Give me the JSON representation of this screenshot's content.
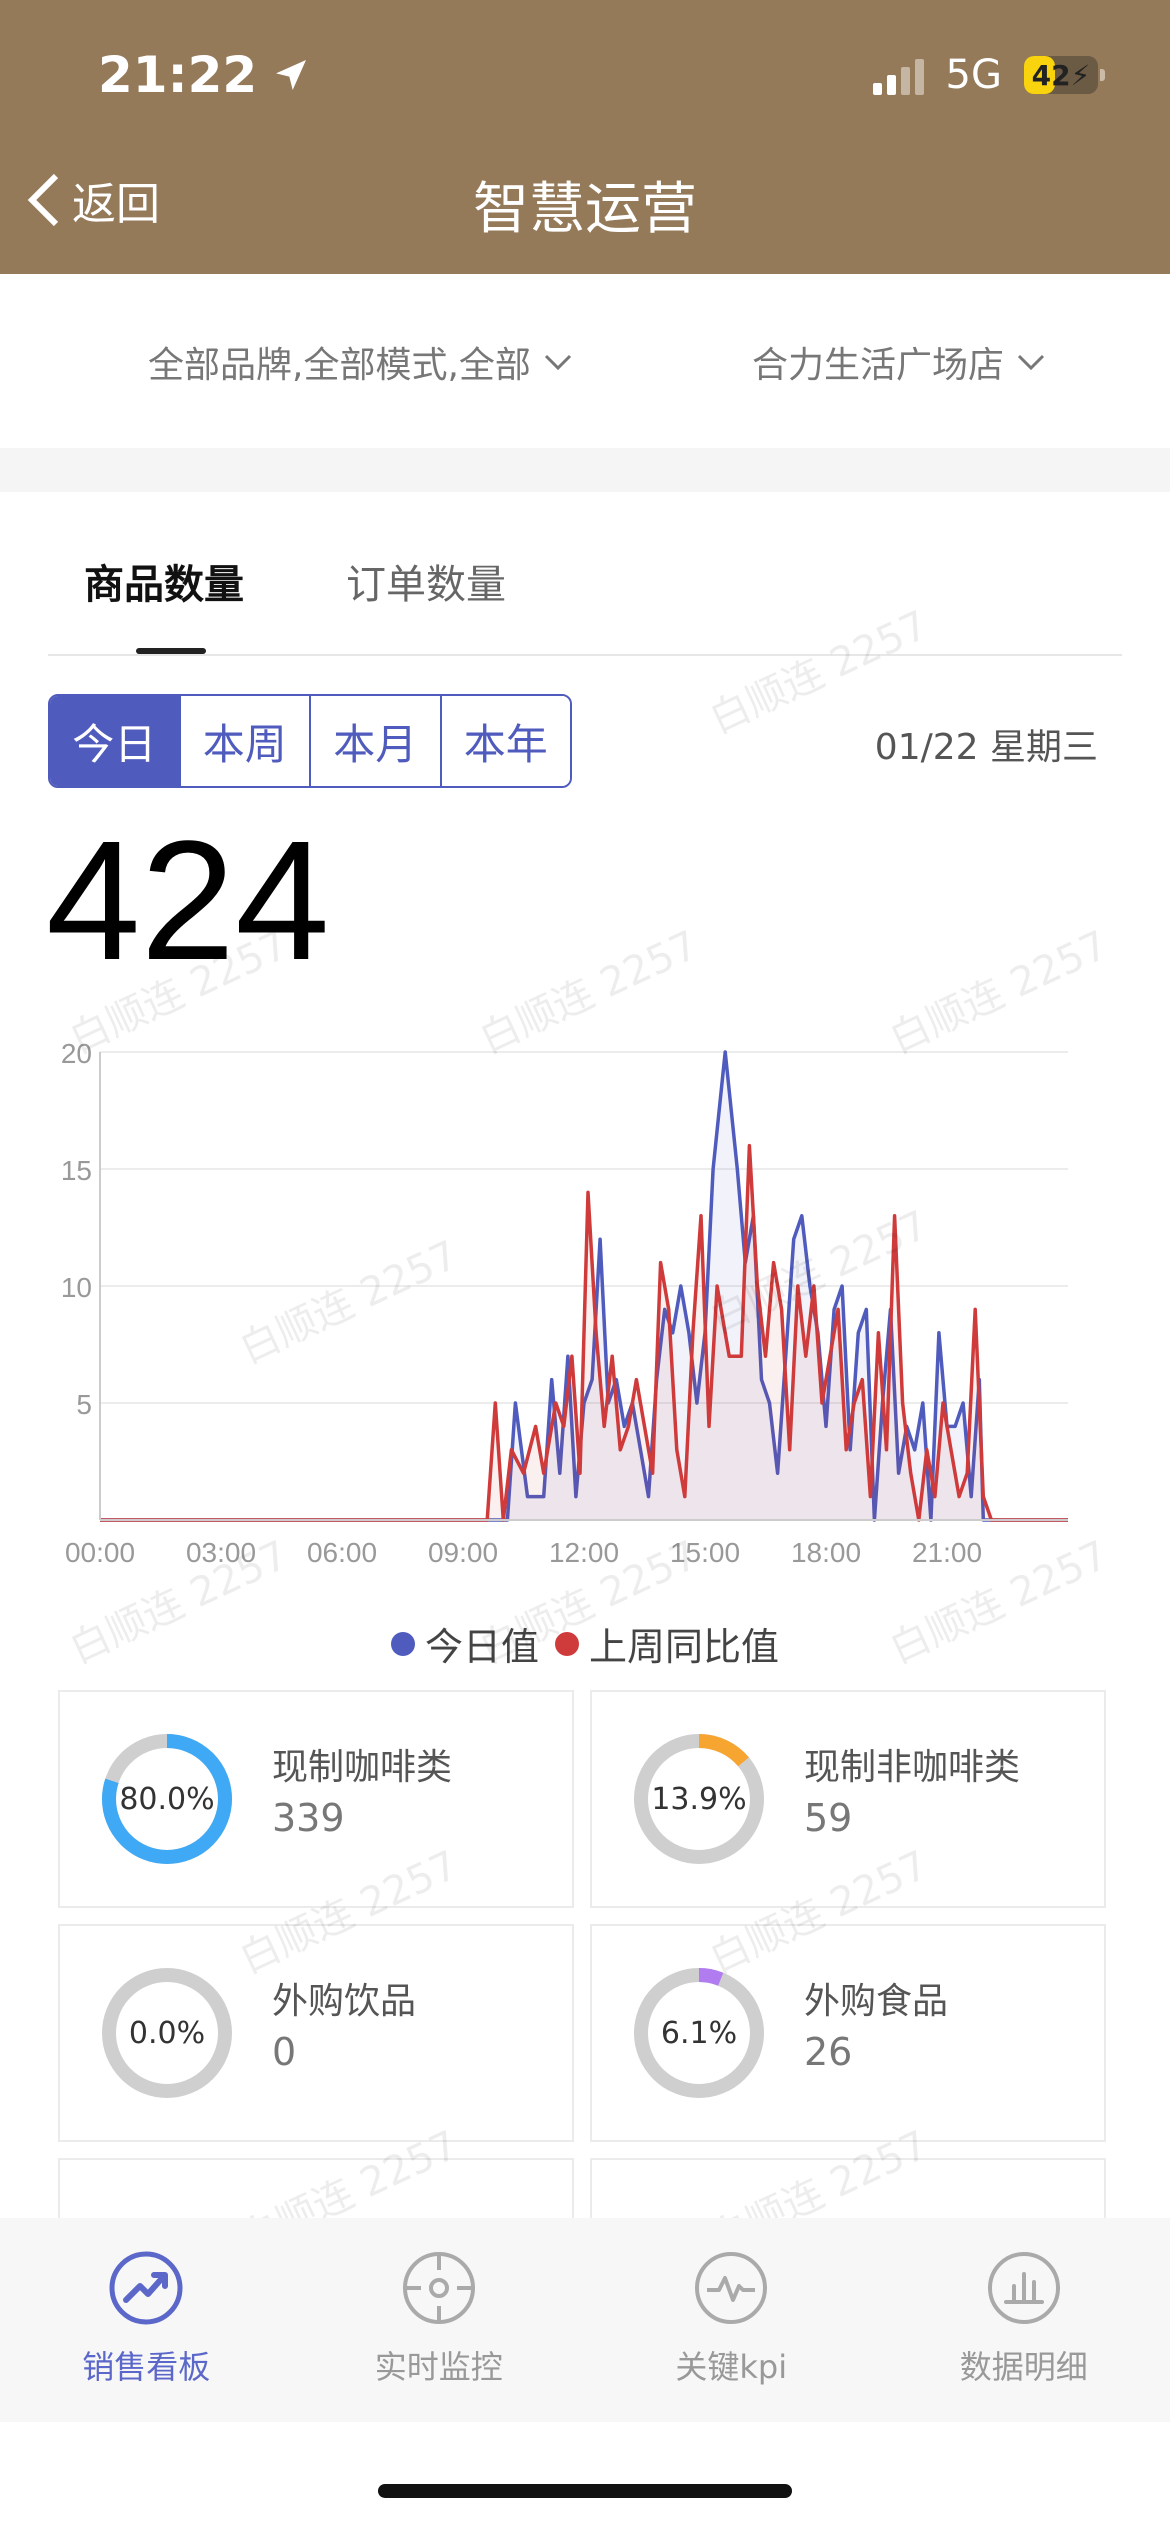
{
  "status_bar": {
    "time": "21:22",
    "network": "5G",
    "battery": "42",
    "battery_level": 0.42
  },
  "header": {
    "back_label": "返回",
    "title": "智慧运营"
  },
  "filters": {
    "brand_filter": "全部品牌,全部模式,全部",
    "store_filter": "合力生活广场店"
  },
  "tabs": [
    {
      "label": "商品数量",
      "active": true
    },
    {
      "label": "订单数量",
      "active": false
    }
  ],
  "period_buttons": [
    {
      "label": "今日",
      "active": true
    },
    {
      "label": "本周",
      "active": false
    },
    {
      "label": "本月",
      "active": false
    },
    {
      "label": "本年",
      "active": false
    }
  ],
  "date_label": "01/22 星期三",
  "total_count": "424",
  "chart_data": {
    "type": "line",
    "x_ticks": [
      "00:00",
      "03:00",
      "06:00",
      "09:00",
      "12:00",
      "15:00",
      "18:00",
      "21:00"
    ],
    "y_ticks": [
      5,
      10,
      15,
      20
    ],
    "ylim": [
      0,
      20
    ],
    "xlim_hours": [
      0,
      24
    ],
    "grid": true,
    "legend_position": "bottom-center",
    "series": [
      {
        "name": "今日值",
        "color": "#4f5bbd",
        "points": [
          [
            0,
            0
          ],
          [
            9.5,
            0
          ],
          [
            10.1,
            0
          ],
          [
            10.3,
            5
          ],
          [
            10.6,
            1
          ],
          [
            11.0,
            1
          ],
          [
            11.2,
            6
          ],
          [
            11.4,
            2
          ],
          [
            11.6,
            7
          ],
          [
            11.8,
            1
          ],
          [
            12.0,
            5
          ],
          [
            12.2,
            6
          ],
          [
            12.4,
            12
          ],
          [
            12.6,
            5
          ],
          [
            12.8,
            6
          ],
          [
            13.0,
            4
          ],
          [
            13.2,
            5
          ],
          [
            13.4,
            3
          ],
          [
            13.6,
            1
          ],
          [
            13.8,
            6
          ],
          [
            14.0,
            9
          ],
          [
            14.2,
            8
          ],
          [
            14.4,
            10
          ],
          [
            14.6,
            8
          ],
          [
            14.8,
            5
          ],
          [
            15.0,
            8
          ],
          [
            15.2,
            15
          ],
          [
            15.5,
            20
          ],
          [
            15.8,
            15
          ],
          [
            16.0,
            11
          ],
          [
            16.2,
            13
          ],
          [
            16.4,
            6
          ],
          [
            16.6,
            5
          ],
          [
            16.8,
            2
          ],
          [
            17.0,
            7
          ],
          [
            17.2,
            12
          ],
          [
            17.4,
            13
          ],
          [
            17.6,
            10
          ],
          [
            17.8,
            8
          ],
          [
            18.0,
            4
          ],
          [
            18.2,
            9
          ],
          [
            18.4,
            10
          ],
          [
            18.6,
            3
          ],
          [
            18.8,
            8
          ],
          [
            19.0,
            9
          ],
          [
            19.2,
            0
          ],
          [
            19.4,
            5
          ],
          [
            19.6,
            9
          ],
          [
            19.8,
            2
          ],
          [
            20.0,
            4
          ],
          [
            20.2,
            3
          ],
          [
            20.4,
            5
          ],
          [
            20.6,
            0
          ],
          [
            20.8,
            8
          ],
          [
            21.0,
            4
          ],
          [
            21.2,
            4
          ],
          [
            21.4,
            5
          ],
          [
            21.6,
            1
          ],
          [
            21.8,
            6
          ],
          [
            21.9,
            0
          ],
          [
            24,
            0
          ]
        ]
      },
      {
        "name": "上周同比值",
        "color": "#cf3b3b",
        "points": [
          [
            0,
            0
          ],
          [
            9.6,
            0
          ],
          [
            9.8,
            5
          ],
          [
            10.0,
            0
          ],
          [
            10.2,
            3
          ],
          [
            10.5,
            2
          ],
          [
            10.8,
            4
          ],
          [
            11.0,
            2
          ],
          [
            11.3,
            5
          ],
          [
            11.5,
            4
          ],
          [
            11.7,
            7
          ],
          [
            11.9,
            2
          ],
          [
            12.1,
            14
          ],
          [
            12.3,
            8
          ],
          [
            12.5,
            4
          ],
          [
            12.7,
            7
          ],
          [
            12.9,
            3
          ],
          [
            13.1,
            4
          ],
          [
            13.3,
            6
          ],
          [
            13.5,
            4
          ],
          [
            13.7,
            2
          ],
          [
            13.9,
            11
          ],
          [
            14.1,
            9
          ],
          [
            14.3,
            3
          ],
          [
            14.5,
            1
          ],
          [
            14.7,
            8
          ],
          [
            14.9,
            13
          ],
          [
            15.1,
            4
          ],
          [
            15.3,
            10
          ],
          [
            15.6,
            7
          ],
          [
            15.9,
            7
          ],
          [
            16.1,
            16
          ],
          [
            16.3,
            10
          ],
          [
            16.5,
            7
          ],
          [
            16.7,
            11
          ],
          [
            16.9,
            9
          ],
          [
            17.1,
            3
          ],
          [
            17.3,
            10
          ],
          [
            17.5,
            7
          ],
          [
            17.7,
            10
          ],
          [
            17.9,
            5
          ],
          [
            18.1,
            7
          ],
          [
            18.3,
            9
          ],
          [
            18.5,
            3
          ],
          [
            18.7,
            5
          ],
          [
            18.9,
            6
          ],
          [
            19.1,
            1
          ],
          [
            19.3,
            8
          ],
          [
            19.5,
            3
          ],
          [
            19.7,
            13
          ],
          [
            19.9,
            5
          ],
          [
            20.1,
            2
          ],
          [
            20.3,
            0
          ],
          [
            20.5,
            3
          ],
          [
            20.7,
            1
          ],
          [
            20.9,
            5
          ],
          [
            21.1,
            3
          ],
          [
            21.3,
            1
          ],
          [
            21.5,
            2
          ],
          [
            21.7,
            9
          ],
          [
            21.9,
            1
          ],
          [
            22.1,
            0
          ],
          [
            24,
            0
          ]
        ]
      }
    ]
  },
  "categories": [
    {
      "name": "现制咖啡类",
      "value": "339",
      "percent_label": "80.0%",
      "percent": 80.0,
      "color": "#3fa9f5"
    },
    {
      "name": "现制非咖啡类",
      "value": "59",
      "percent_label": "13.9%",
      "percent": 13.9,
      "color": "#f7a531"
    },
    {
      "name": "外购饮品",
      "value": "0",
      "percent_label": "0.0%",
      "percent": 0.0,
      "color": "#9aa7f0"
    },
    {
      "name": "外购食品",
      "value": "26",
      "percent_label": "6.1%",
      "percent": 6.1,
      "color": "#b07cf0"
    }
  ],
  "bottom_nav": [
    {
      "label": "销售看板",
      "icon": "trend-chart-icon",
      "active": true
    },
    {
      "label": "实时监控",
      "icon": "crosshair-icon",
      "active": false
    },
    {
      "label": "关键kpi",
      "icon": "pulse-icon",
      "active": false
    },
    {
      "label": "数据明细",
      "icon": "bar-chart-icon",
      "active": false
    }
  ],
  "watermark": "白顺连 2257"
}
